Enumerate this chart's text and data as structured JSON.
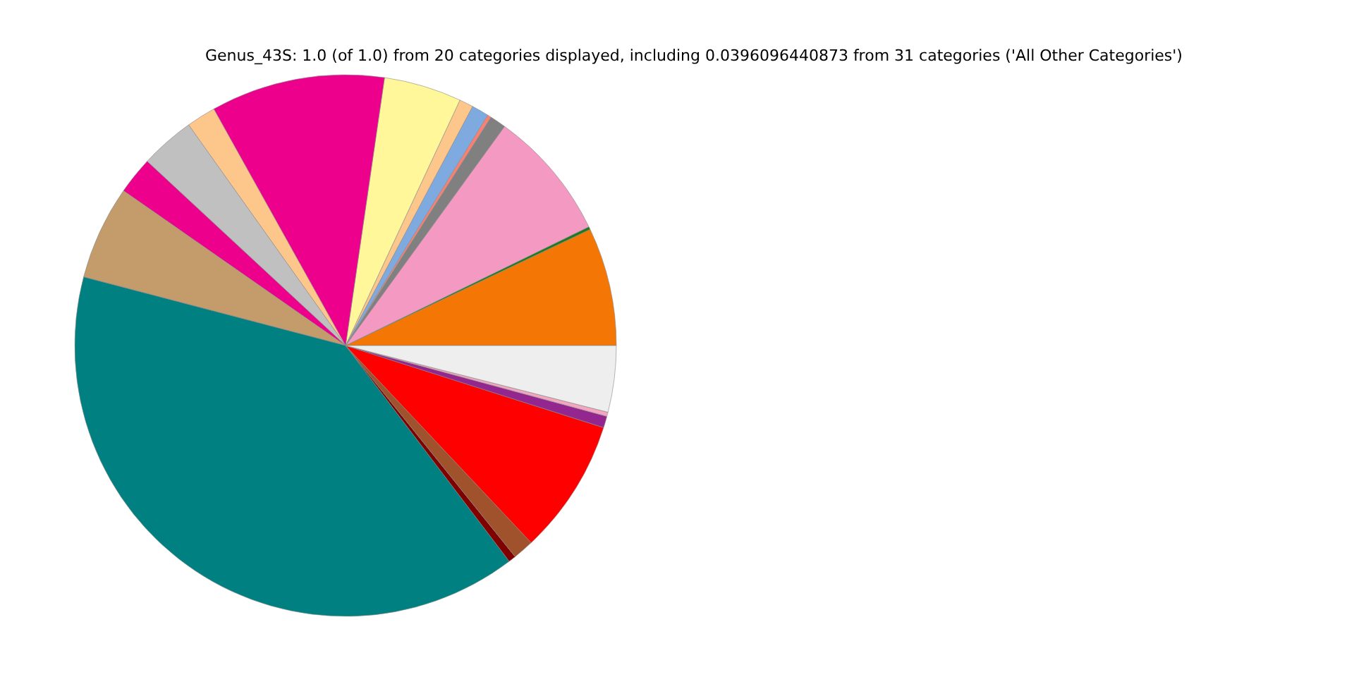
{
  "chart_data": {
    "type": "pie",
    "title": "Genus_43S: 1.0 (of 1.0) from 20 categories displayed, including 0.0396096440873 from 31 categories ('All Other Categories')",
    "categories": [
      null,
      null,
      null,
      null,
      null,
      null,
      null,
      null,
      null,
      null,
      null,
      null,
      null,
      null,
      null,
      null,
      null,
      null,
      null,
      null
    ],
    "values": [
      7.06,
      0.17,
      7.78,
      0.97,
      0.22,
      1.03,
      0.83,
      4.64,
      10.39,
      1.75,
      3.25,
      2.22,
      5.61,
      39.41,
      0.44,
      1.25,
      8.08,
      0.69,
      0.25,
      3.96
    ],
    "colors": [
      "#f47604",
      "#1f7a1f",
      "#f49ac2",
      "#808080",
      "#fa8072",
      "#7faadf",
      "#fdc68a",
      "#fff799",
      "#ec008c",
      "#fdc68a",
      "#c0c0c0",
      "#ec008c",
      "#c49c6c",
      "#008080",
      "#800000",
      "#a0522d",
      "#ff0000",
      "#93278f",
      "#f4a6c0",
      "#eeeeee"
    ]
  }
}
